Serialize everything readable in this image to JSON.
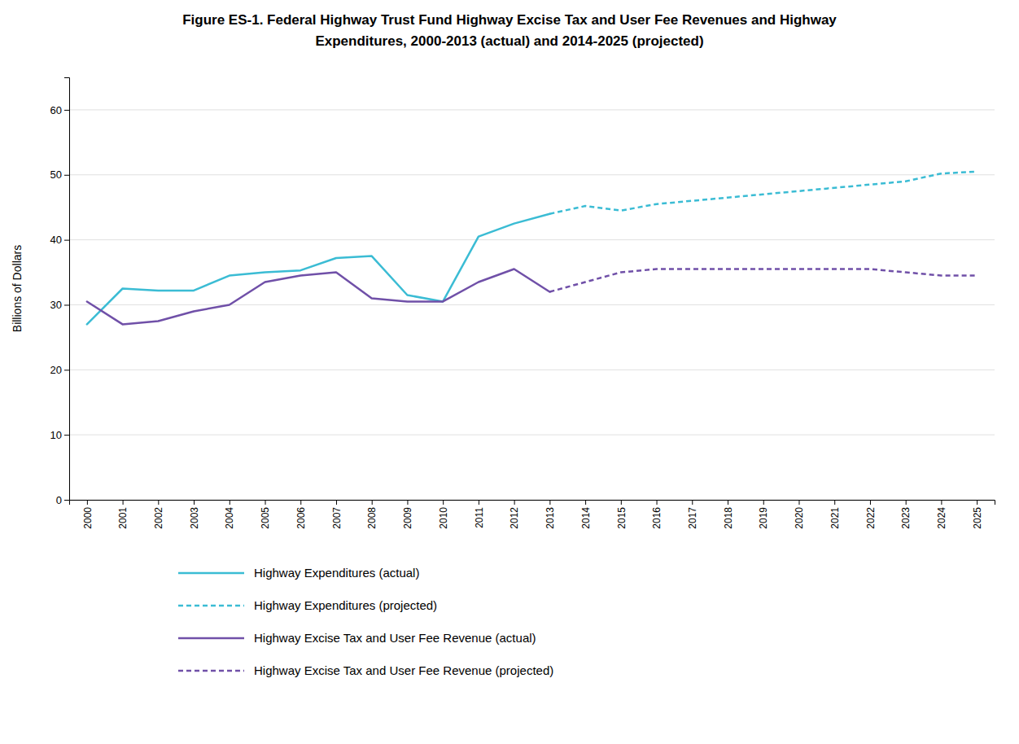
{
  "chart_data": {
    "type": "line",
    "title": "Figure ES-1. Federal Highway Trust Fund Highway Excise Tax and User Fee Revenues and Highway",
    "subtitle": "Expenditures, 2000-2013 (actual) and 2014-2025 (projected)",
    "y_label": "Billions of Dollars",
    "xlim": [
      1999.5,
      2025.5
    ],
    "xticks": [
      2000,
      2001,
      2002,
      2003,
      2004,
      2005,
      2006,
      2007,
      2008,
      2009,
      2010,
      2011,
      2012,
      2013,
      2014,
      2015,
      2016,
      2017,
      2018,
      2019,
      2020,
      2021,
      2022,
      2023,
      2024,
      2025
    ],
    "ylim": [
      0,
      65
    ],
    "yticks": [
      0,
      10,
      20,
      30,
      40,
      50,
      60
    ],
    "grid": "y",
    "legend": "bottom",
    "series": [
      {
        "name": "Highway Expenditures (actual)",
        "color": "#3bbcd4",
        "line_style": "solid",
        "x": [
          2000,
          2001,
          2002,
          2003,
          2004,
          2005,
          2006,
          2007,
          2008,
          2009,
          2010,
          2011,
          2012,
          2013
        ],
        "values": [
          27.0,
          32.5,
          32.2,
          32.2,
          34.5,
          35.0,
          35.3,
          37.2,
          37.5,
          31.5,
          30.5,
          40.5,
          42.5,
          44.0
        ]
      },
      {
        "name": "Highway Expenditures (projected)",
        "color": "#3bbcd4",
        "line_style": "dashed",
        "x": [
          2013,
          2014,
          2015,
          2016,
          2017,
          2018,
          2019,
          2020,
          2021,
          2022,
          2023,
          2024,
          2025
        ],
        "values": [
          44.0,
          45.2,
          44.5,
          45.5,
          46.0,
          46.5,
          47.0,
          47.5,
          48.0,
          48.5,
          49.0,
          50.2,
          50.5
        ]
      },
      {
        "name": "Highway Excise Tax and User Fee Revenue (actual)",
        "color": "#7050a8",
        "line_style": "solid",
        "x": [
          2000,
          2001,
          2002,
          2003,
          2004,
          2005,
          2006,
          2007,
          2008,
          2009,
          2010,
          2011,
          2012,
          2013
        ],
        "values": [
          30.5,
          27.0,
          27.5,
          29.0,
          30.0,
          33.5,
          34.5,
          35.0,
          31.0,
          30.5,
          30.5,
          33.5,
          35.5,
          32.0
        ]
      },
      {
        "name": "Highway Excise Tax and User Fee Revenue (projected)",
        "color": "#7050a8",
        "line_style": "dashed",
        "x": [
          2013,
          2014,
          2015,
          2016,
          2017,
          2018,
          2019,
          2020,
          2021,
          2022,
          2023,
          2024,
          2025
        ],
        "values": [
          32.0,
          33.5,
          35.0,
          35.5,
          35.5,
          35.5,
          35.5,
          35.5,
          35.5,
          35.5,
          35.0,
          34.5,
          34.5
        ]
      }
    ]
  }
}
